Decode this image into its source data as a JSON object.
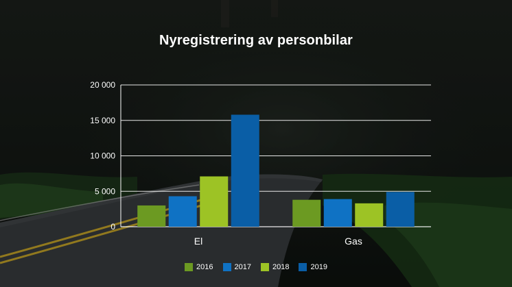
{
  "chart_data": {
    "type": "bar",
    "title": "Nyregistrering av personbilar",
    "categories": [
      "El",
      "Gas"
    ],
    "series": [
      {
        "name": "2016",
        "values": [
          3000,
          3800
        ],
        "color": "#6c9a22"
      },
      {
        "name": "2017",
        "values": [
          4300,
          3900
        ],
        "color": "#0f72c4"
      },
      {
        "name": "2018",
        "values": [
          7100,
          3300
        ],
        "color": "#9dc325"
      },
      {
        "name": "2019",
        "values": [
          15800,
          4900
        ],
        "color": "#0a5ea6"
      }
    ],
    "yticks": [
      {
        "value": 0,
        "label": "0"
      },
      {
        "value": 5000,
        "label": "5 000"
      },
      {
        "value": 10000,
        "label": "10 000"
      },
      {
        "value": 15000,
        "label": "15 000"
      },
      {
        "value": 20000,
        "label": "20 000"
      }
    ],
    "ylim": [
      0,
      20000
    ],
    "grid": true,
    "legend_position": "bottom"
  }
}
